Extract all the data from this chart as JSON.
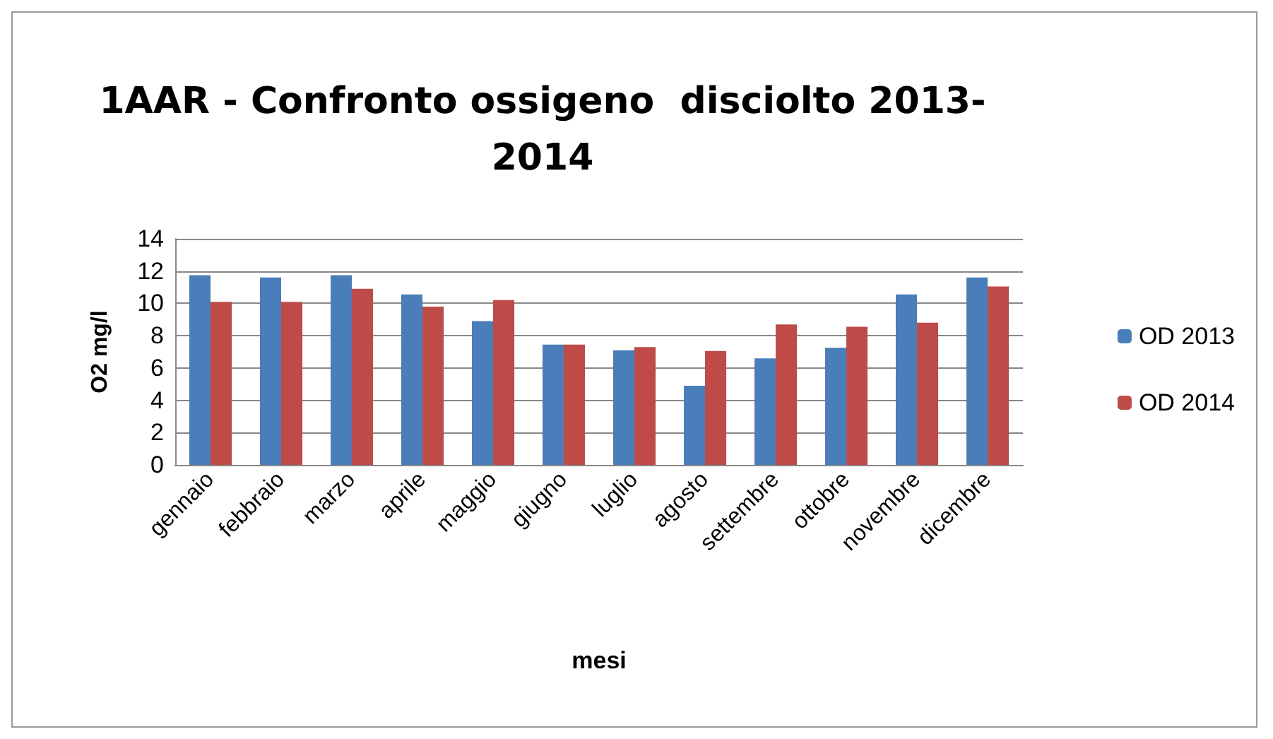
{
  "chart_data": {
    "type": "bar",
    "title": "1AAR - Confronto ossigeno  disciolto 2013-\n2014",
    "xlabel": "mesi",
    "ylabel": "O2 mg/l",
    "categories": [
      "gennaio",
      "febbraio",
      "marzo",
      "aprile",
      "maggio",
      "giugno",
      "luglio",
      "agosto",
      "settembre",
      "ottobre",
      "novembre",
      "dicembre"
    ],
    "series": [
      {
        "name": "OD 2013",
        "color": "#4a7ebb",
        "values": [
          11.75,
          11.6,
          11.75,
          10.55,
          8.9,
          7.45,
          7.1,
          4.9,
          6.6,
          7.25,
          10.55,
          11.6
        ]
      },
      {
        "name": "OD 2014",
        "color": "#be4b48",
        "values": [
          10.1,
          10.1,
          10.9,
          9.8,
          10.2,
          7.45,
          7.3,
          7.05,
          8.7,
          8.55,
          8.8,
          11.05
        ]
      }
    ],
    "ylim": [
      0,
      14
    ],
    "yticks": [
      0,
      2,
      4,
      6,
      8,
      10,
      12,
      14
    ],
    "grid": "y",
    "legend": "right"
  }
}
